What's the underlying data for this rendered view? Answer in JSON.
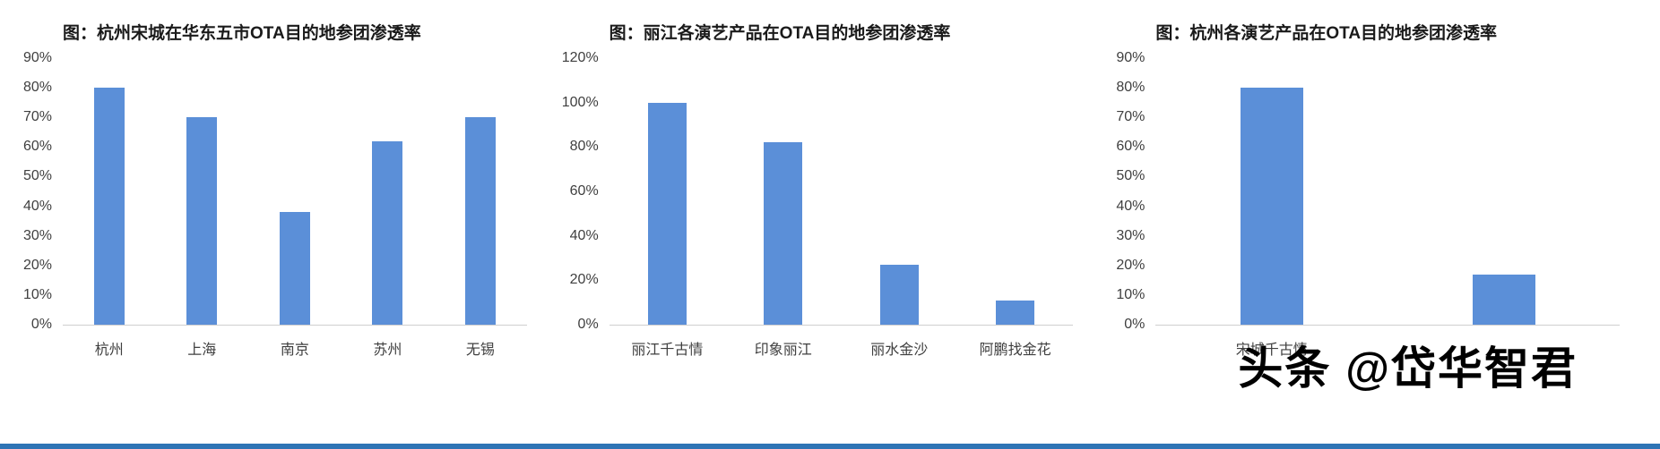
{
  "watermark": "头条 @岱华智君",
  "colors": {
    "bar": "#5B8FD8",
    "bottom_strip": "#2E74B5",
    "axis_line": "#CFCFCF",
    "tick_text": "#3F3F3F",
    "title_text": "#1A1A1A"
  },
  "chart_data": [
    {
      "type": "bar",
      "title": "图：杭州宋城在华东五市OTA目的地参团渗透率",
      "categories": [
        "杭州",
        "上海",
        "南京",
        "苏州",
        "无锡"
      ],
      "values": [
        80,
        70,
        38,
        62,
        70
      ],
      "xlabel": "",
      "ylabel": "",
      "ylim": [
        0,
        90
      ],
      "ytick_step": 10,
      "ytick_suffix": "%",
      "grid": false,
      "legend": "none",
      "bar_width_pct": 33
    },
    {
      "type": "bar",
      "title": "图：丽江各演艺产品在OTA目的地参团渗透率",
      "categories": [
        "丽江千古情",
        "印象丽江",
        "丽水金沙",
        "阿鹏找金花"
      ],
      "values": [
        100,
        82,
        27,
        11
      ],
      "xlabel": "",
      "ylabel": "",
      "ylim": [
        0,
        120
      ],
      "ytick_step": 20,
      "ytick_suffix": "%",
      "grid": false,
      "legend": "none",
      "bar_width_pct": 33
    },
    {
      "type": "bar",
      "title": "图：杭州各演艺产品在OTA目的地参团渗透率",
      "categories": [
        "宋城千古情",
        ""
      ],
      "values": [
        80,
        17
      ],
      "xlabel": "",
      "ylabel": "",
      "ylim": [
        0,
        90
      ],
      "ytick_step": 10,
      "ytick_suffix": "%",
      "grid": false,
      "legend": "none",
      "bar_width_pct": 27
    }
  ]
}
